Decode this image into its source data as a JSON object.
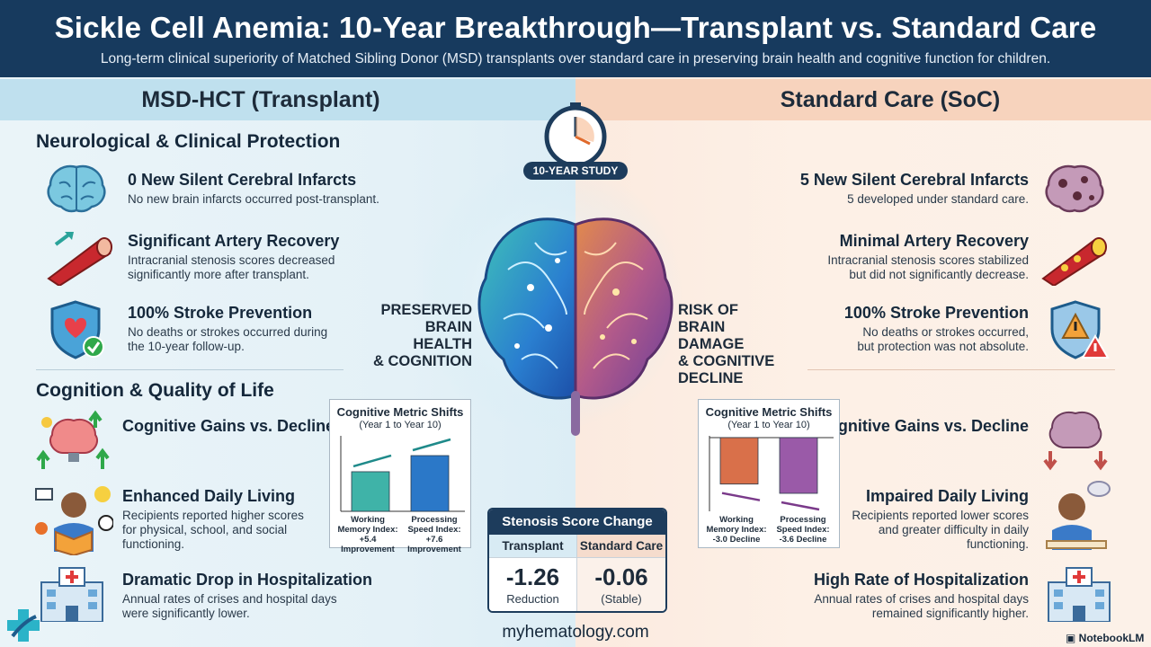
{
  "header": {
    "title": "Sickle Cell Anemia: 10-Year Breakthrough—Transplant vs. Standard Care",
    "subtitle": "Long-term clinical superiority of Matched Sibling Donor (MSD) transplants over standard care in preserving brain health and cognitive function for children."
  },
  "columns": {
    "left_title": "MSD-HCT (Transplant)",
    "right_title": "Standard Care (SoC)"
  },
  "study_badge": "10-YEAR STUDY",
  "left": {
    "section1": "Neurological & Clinical Protection",
    "items": [
      {
        "title": "0 New Silent Cerebral Infarcts",
        "desc": "No new brain infarcts occurred post-transplant."
      },
      {
        "title": "Significant Artery Recovery",
        "desc1": "Intracranial stenosis scores decreased",
        "desc2": "significantly more after transplant."
      },
      {
        "title": "100% Stroke Prevention",
        "desc1": "No deaths or strokes occurred during",
        "desc2": "the 10-year follow-up."
      }
    ],
    "section2": "Cognition & Quality of Life",
    "items2": [
      {
        "title": "Cognitive Gains vs. Decline"
      },
      {
        "title": "Enhanced Daily Living",
        "desc1": "Recipients reported higher scores",
        "desc2": "for physical, school, and social",
        "desc3": "functioning."
      },
      {
        "title": "Dramatic Drop in Hospitalization",
        "desc1": "Annual rates of crises and hospital days",
        "desc2": "were significantly lower."
      }
    ],
    "mid_label": [
      "PRESERVED",
      "BRAIN HEALTH",
      "& COGNITION"
    ]
  },
  "right": {
    "items": [
      {
        "title": "5 New Silent Cerebral Infarcts",
        "desc": "5 developed under standard care."
      },
      {
        "title": "Minimal Artery Recovery",
        "desc1": "Intracranial stenosis scores stabilized",
        "desc2": "but did not significantly decrease."
      },
      {
        "title": "100% Stroke Prevention",
        "desc1": "No deaths or strokes occurred,",
        "desc2": "but protection was not absolute."
      }
    ],
    "items2": [
      {
        "title": "Cognitive Gains vs. Decline"
      },
      {
        "title": "Impaired Daily Living",
        "desc1": "Recipients reported lower scores",
        "desc2": "and greater difficulty in daily",
        "desc3": "functioning."
      },
      {
        "title": "High Rate of Hospitalization",
        "desc1": "Annual rates of crises and hospital days",
        "desc2": "remained significantly higher."
      }
    ],
    "mid_label": [
      "RISK OF",
      "BRAIN DAMAGE",
      "& COGNITIVE",
      "DECLINE"
    ]
  },
  "chart_data": [
    {
      "type": "bar",
      "title": "Cognitive Metric Shifts",
      "subtitle": "(Year 1 to Year 10)",
      "categories": [
        "Working Memory Index: +5.4 Improvement",
        "Processing Speed Index: +7.6 Improvement"
      ],
      "cat_lines": [
        [
          "Working",
          "Memory Index:",
          "+5.4 Improvement"
        ],
        [
          "Processing",
          "Speed Index:",
          "+7.6 Improvement"
        ]
      ],
      "values": [
        5.4,
        7.6
      ],
      "colors": [
        "#3fb3a8",
        "#2b78c8"
      ]
    },
    {
      "type": "bar",
      "title": "Cognitive Metric Shifts",
      "subtitle": "(Year 1 to Year 10)",
      "categories": [
        "Working Memory Index: -3.0 Decline",
        "Processing Speed Index: -3.6 Decline"
      ],
      "cat_lines": [
        [
          "Working",
          "Memory Index:",
          "-3.0 Decline"
        ],
        [
          "Processing",
          "Speed Index:",
          "-3.6 Decline"
        ]
      ],
      "values": [
        -3.0,
        -3.6
      ],
      "colors": [
        "#d9704a",
        "#9a5aa8"
      ]
    }
  ],
  "stenosis": {
    "title": "Stenosis Score Change",
    "transplant_label": "Transplant",
    "soc_label": "Standard Care",
    "transplant_value": "-1.26",
    "transplant_note": "Reduction",
    "soc_value": "-0.06",
    "soc_note": "(Stable)"
  },
  "footer": {
    "site": "myhematology.com",
    "brand": "NotebookLM"
  }
}
